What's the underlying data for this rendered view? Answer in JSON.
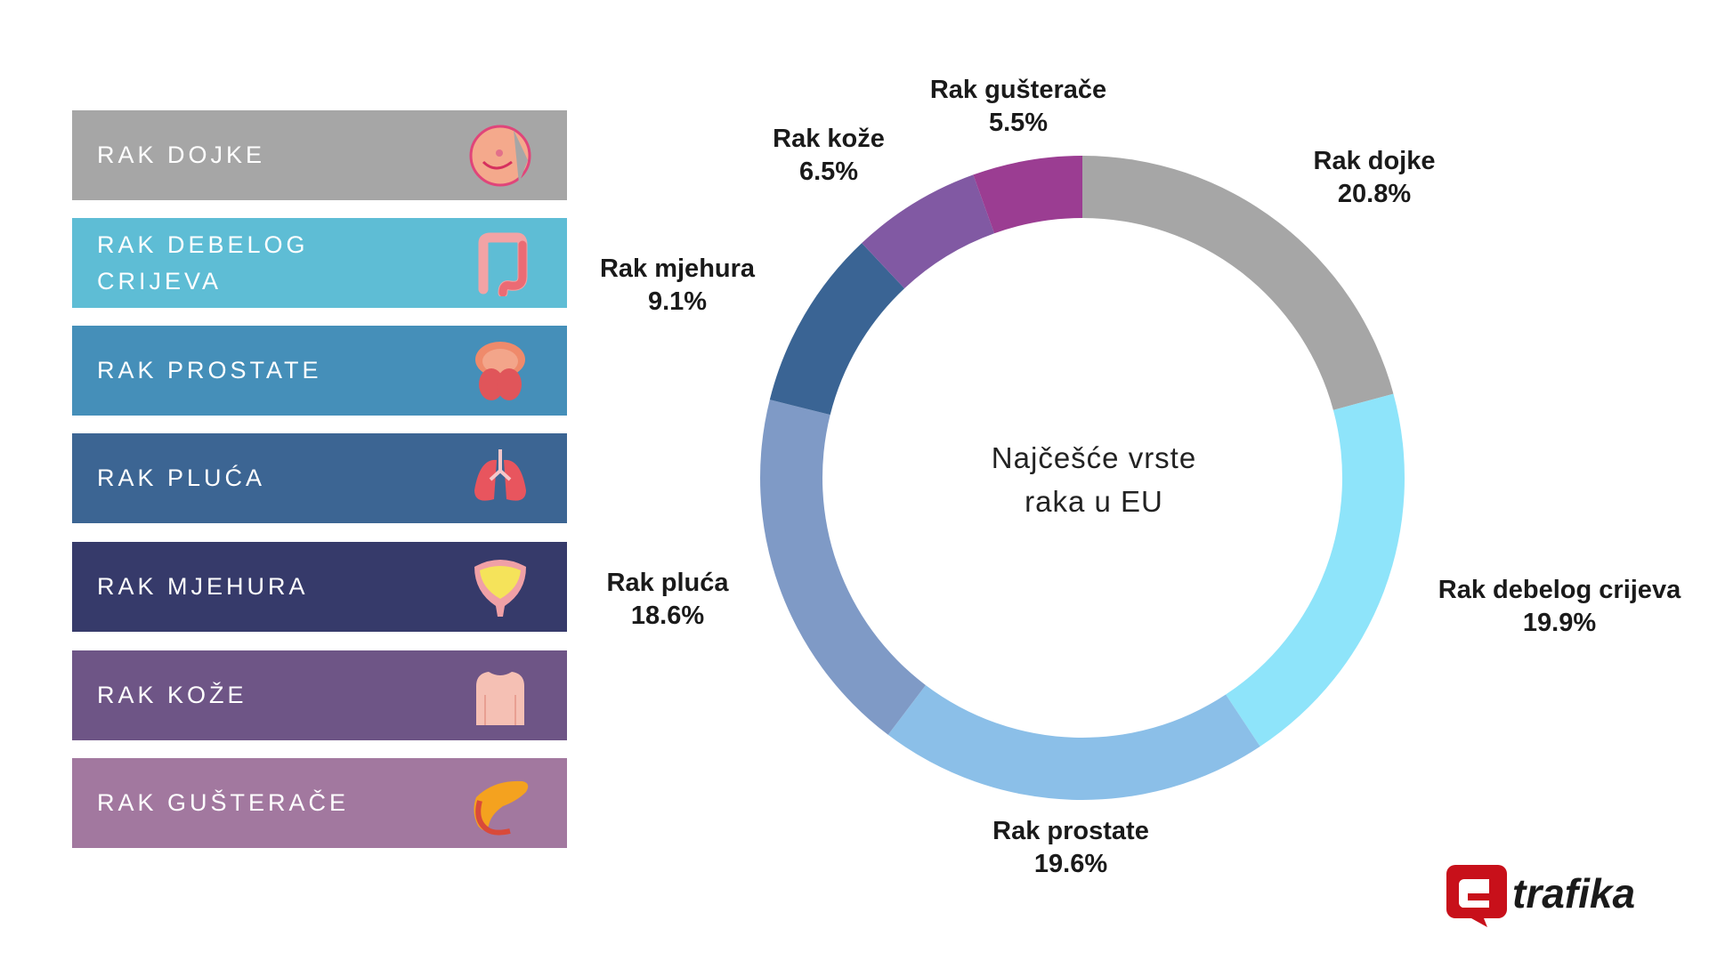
{
  "legend_rows": [
    {
      "label": "RAK DOJKE",
      "color": "#a6a6a6",
      "icon": "breast-icon"
    },
    {
      "label": "RAK DEBELOG CRIJEVA",
      "color": "#5ebdd5",
      "icon": "colon-icon"
    },
    {
      "label": "RAK PROSTATE",
      "color": "#458fb9",
      "icon": "prostate-icon"
    },
    {
      "label": "RAK PLUĆA",
      "color": "#3c6593",
      "icon": "lungs-icon"
    },
    {
      "label": "RAK MJEHURA",
      "color": "#363a6a",
      "icon": "bladder-icon"
    },
    {
      "label": "RAK KOŽE",
      "color": "#6e5586",
      "icon": "skin-icon"
    },
    {
      "label": "RAK GUŠTERAČE",
      "color": "#a2789f",
      "icon": "pancreas-icon"
    }
  ],
  "chart_data": {
    "type": "pie",
    "variant": "donut",
    "title": "Najčešće vrste raka u EU",
    "title_lines": [
      "Najčešće vrste",
      "raka u EU"
    ],
    "start": "top",
    "direction": "clockwise",
    "slices": [
      {
        "name": "Rak dojke",
        "value": 20.8,
        "label": "20.8%",
        "color": "#a6a6a6"
      },
      {
        "name": "Rak debelog crijeva",
        "value": 19.9,
        "label": "19.9%",
        "color": "#8ee4fa"
      },
      {
        "name": "Rak prostate",
        "value": 19.6,
        "label": "19.6%",
        "color": "#8bbfe8"
      },
      {
        "name": "Rak pluća",
        "value": 18.6,
        "label": "18.6%",
        "color": "#7f9ac6"
      },
      {
        "name": "Rak mjehura",
        "value": 9.1,
        "label": "9.1%",
        "color": "#3a6494"
      },
      {
        "name": "Rak kože",
        "value": 6.5,
        "label": "6.5%",
        "color": "#8159a3"
      },
      {
        "name": "Rak gušterače",
        "value": 5.5,
        "label": "5.5%",
        "color": "#9b3d92"
      }
    ]
  },
  "logo": {
    "text": "etrafika",
    "color": "#d0121b"
  }
}
